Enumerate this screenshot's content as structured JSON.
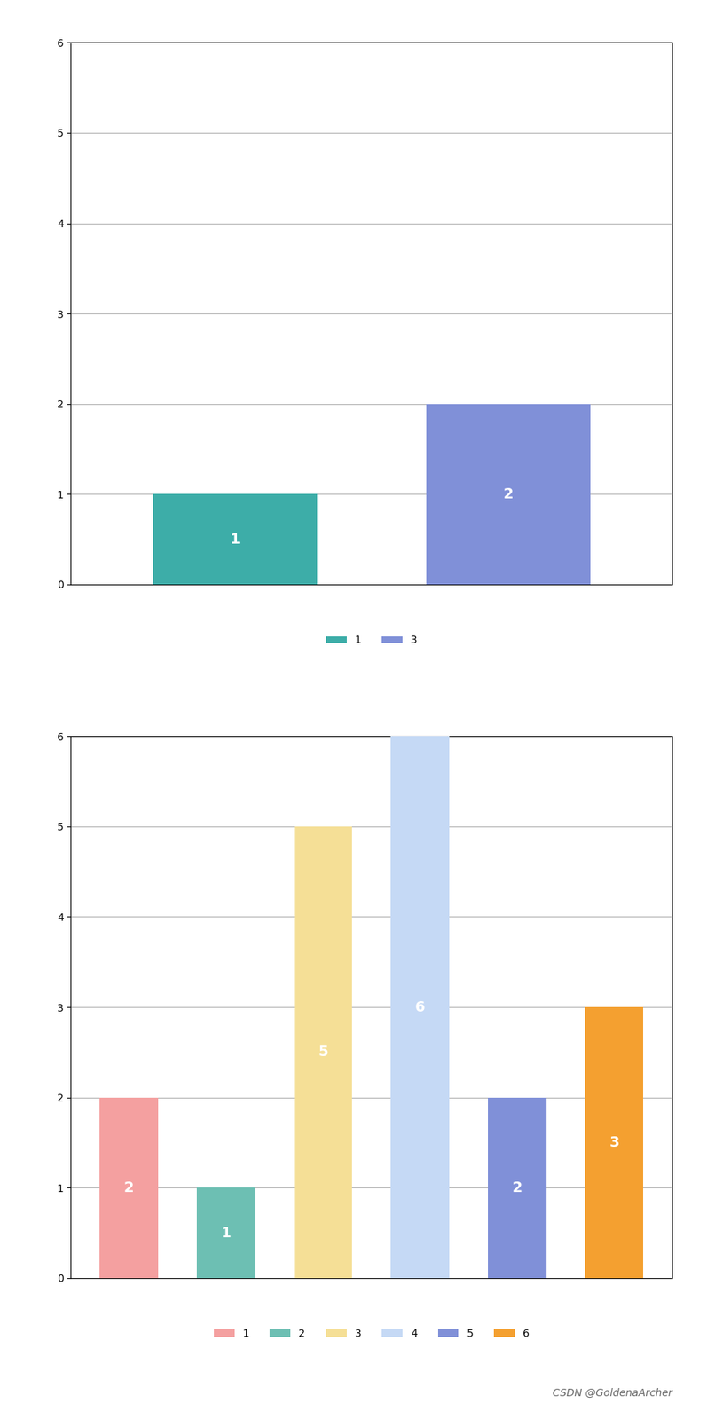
{
  "chart_data": [
    {
      "type": "bar",
      "categories": [
        null,
        null
      ],
      "series": [
        {
          "name": "1",
          "color": "#3dada8",
          "values": [
            1,
            null
          ]
        },
        {
          "name": "3",
          "color": "#8090d8",
          "values": [
            null,
            2
          ]
        }
      ],
      "ylim": [
        0,
        6
      ],
      "yticks": [
        0,
        1,
        2,
        3,
        4,
        5,
        6
      ],
      "grid": true,
      "data_labels": true,
      "tick_labels": "y",
      "legend": "lower center"
    },
    {
      "type": "bar",
      "categories": [
        null,
        null,
        null,
        null,
        null,
        null
      ],
      "series": [
        {
          "name": "1",
          "color": "#f4a0a0",
          "values": [
            2,
            null,
            null,
            null,
            null,
            null
          ]
        },
        {
          "name": "2",
          "color": "#6dbfb3",
          "values": [
            null,
            1,
            null,
            null,
            null,
            null
          ]
        },
        {
          "name": "3",
          "color": "#f5df96",
          "values": [
            null,
            null,
            5,
            null,
            null,
            null
          ]
        },
        {
          "name": "4",
          "color": "#c5d9f5",
          "values": [
            null,
            null,
            null,
            6,
            null,
            null
          ]
        },
        {
          "name": "5",
          "color": "#8090d8",
          "values": [
            null,
            null,
            null,
            null,
            2,
            null
          ]
        },
        {
          "name": "6",
          "color": "#f4a030",
          "values": [
            null,
            null,
            null,
            null,
            null,
            3
          ]
        }
      ],
      "ylim": [
        0,
        6
      ],
      "yticks": [
        0,
        1,
        2,
        3,
        4,
        5,
        6
      ],
      "grid": true,
      "data_labels": true,
      "tick_labels": "y",
      "legend": "lower center",
      "annotations": [
        "CSDN @GoldenaArcher"
      ]
    }
  ]
}
